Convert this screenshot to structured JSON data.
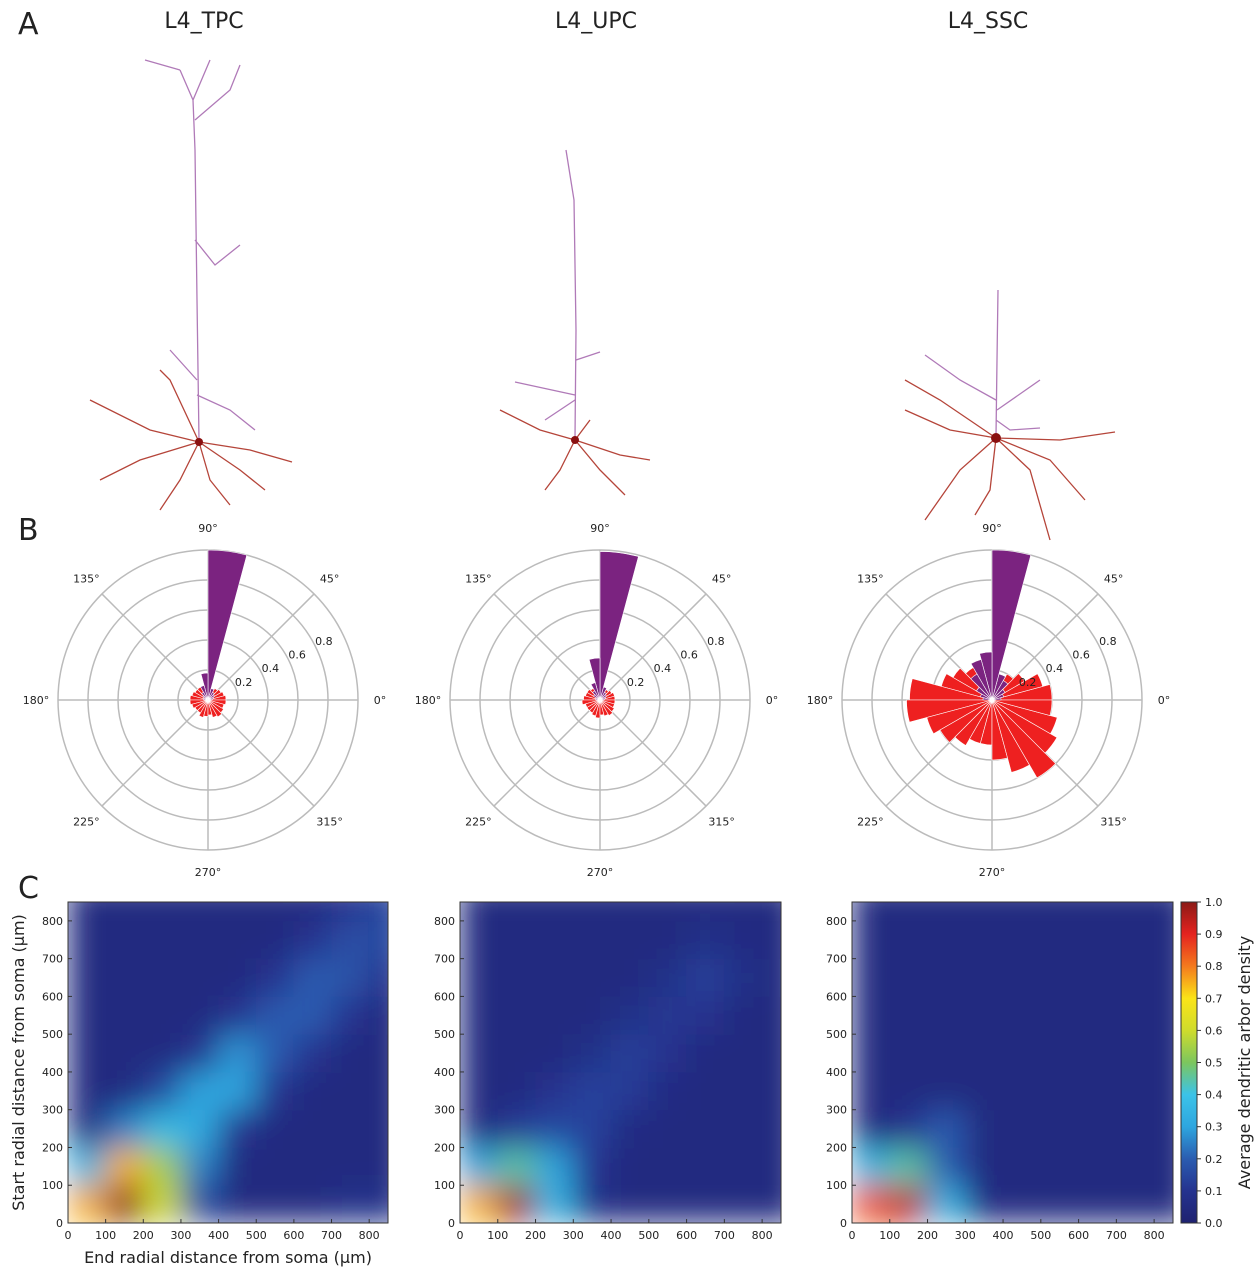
{
  "panel_labels": [
    "A",
    "B",
    "C"
  ],
  "neurons": [
    {
      "title": "L4_TPC"
    },
    {
      "title": "L4_UPC"
    },
    {
      "title": "L4_SSC"
    }
  ],
  "chart_data": [
    {
      "type": "polar-bar",
      "x": [
        0,
        15,
        30,
        45,
        60,
        75,
        90,
        105,
        120,
        135,
        150,
        165,
        180,
        195,
        210,
        225,
        240,
        255,
        270,
        285,
        300,
        315,
        330,
        345
      ],
      "series": [
        {
          "color": "#ee2020",
          "values": [
            0.12,
            0.11,
            0.1,
            0.09,
            0.08,
            0.06,
            0.07,
            0.08,
            0.1,
            0.1,
            0.11,
            0.12,
            0.12,
            0.11,
            0.1,
            0.1,
            0.12,
            0.11,
            0.1,
            0.12,
            0.13,
            0.12,
            0.11,
            0.12
          ]
        },
        {
          "color": "#7b2380",
          "values": [
            0.03,
            0.04,
            0.05,
            0.06,
            0.08,
            1.0,
            0.18,
            0.1,
            0.06,
            0.04,
            0.03,
            0.03,
            0,
            0,
            0,
            0,
            0,
            0,
            0,
            0,
            0,
            0,
            0,
            0
          ]
        }
      ],
      "ylim": [
        0,
        1
      ],
      "yticks": [
        0.2,
        0.4,
        0.6,
        0.8
      ],
      "angle_ticks": [
        {
          "value": 0,
          "label": "0°"
        },
        {
          "value": 45,
          "label": "45°"
        },
        {
          "value": 90,
          "label": "90°"
        },
        {
          "value": 135,
          "label": "135°"
        },
        {
          "value": 180,
          "label": "180°"
        },
        {
          "value": 225,
          "label": "225°"
        },
        {
          "value": 270,
          "label": "270°"
        },
        {
          "value": 315,
          "label": "315°"
        }
      ]
    },
    {
      "type": "polar-bar",
      "x": [
        0,
        15,
        30,
        45,
        60,
        75,
        90,
        105,
        120,
        135,
        150,
        165,
        180,
        195,
        210,
        225,
        240,
        255,
        270,
        285,
        300,
        315,
        330,
        345
      ],
      "series": [
        {
          "color": "#ee2020",
          "values": [
            0.1,
            0.1,
            0.09,
            0.08,
            0.07,
            0.06,
            0.07,
            0.08,
            0.09,
            0.1,
            0.1,
            0.11,
            0.12,
            0.1,
            0.1,
            0.1,
            0.11,
            0.12,
            0.1,
            0.11,
            0.12,
            0.11,
            0.1,
            0.1
          ]
        },
        {
          "color": "#7b2380",
          "values": [
            0.03,
            0.04,
            0.05,
            0.06,
            0.09,
            0.99,
            0.28,
            0.12,
            0.07,
            0.05,
            0.03,
            0.03,
            0,
            0,
            0,
            0,
            0,
            0,
            0,
            0,
            0,
            0,
            0,
            0
          ]
        }
      ],
      "ylim": [
        0,
        1
      ],
      "yticks": [
        0.2,
        0.4,
        0.6,
        0.8
      ],
      "angle_ticks": [
        {
          "value": 0,
          "label": "0°"
        },
        {
          "value": 45,
          "label": "45°"
        },
        {
          "value": 90,
          "label": "90°"
        },
        {
          "value": 135,
          "label": "135°"
        },
        {
          "value": 180,
          "label": "180°"
        },
        {
          "value": 225,
          "label": "225°"
        },
        {
          "value": 270,
          "label": "270°"
        },
        {
          "value": 315,
          "label": "315°"
        }
      ]
    },
    {
      "type": "polar-bar",
      "x": [
        0,
        15,
        30,
        45,
        60,
        75,
        90,
        105,
        120,
        135,
        150,
        165,
        180,
        195,
        210,
        225,
        240,
        255,
        270,
        285,
        300,
        315,
        330,
        345
      ],
      "series": [
        {
          "color": "#ee2020",
          "values": [
            0.4,
            0.35,
            0.25,
            0.2,
            0.15,
            0.1,
            0.15,
            0.2,
            0.25,
            0.3,
            0.35,
            0.55,
            0.57,
            0.45,
            0.4,
            0.35,
            0.3,
            0.3,
            0.4,
            0.5,
            0.6,
            0.5,
            0.45,
            0.4
          ]
        },
        {
          "color": "#7b2380",
          "values": [
            0.06,
            0.08,
            0.1,
            0.15,
            0.18,
            1.0,
            0.32,
            0.28,
            0.2,
            0.12,
            0.08,
            0.06,
            0,
            0,
            0,
            0,
            0,
            0,
            0,
            0,
            0,
            0,
            0,
            0
          ]
        }
      ],
      "ylim": [
        0,
        1
      ],
      "yticks": [
        0.2,
        0.4,
        0.6,
        0.8
      ],
      "angle_ticks": [
        {
          "value": 0,
          "label": "0°"
        },
        {
          "value": 45,
          "label": "45°"
        },
        {
          "value": 90,
          "label": "90°"
        },
        {
          "value": 135,
          "label": "135°"
        },
        {
          "value": 180,
          "label": "180°"
        },
        {
          "value": 225,
          "label": "225°"
        },
        {
          "value": 270,
          "label": "270°"
        },
        {
          "value": 315,
          "label": "315°"
        }
      ]
    },
    {
      "type": "heatmap",
      "x": [
        50,
        150,
        250,
        350,
        450,
        550,
        650,
        750,
        850
      ],
      "y": [
        50,
        150,
        250,
        350,
        450,
        550,
        650,
        750,
        850
      ],
      "z": [
        [
          0.75,
          1.0,
          0.6,
          0.15,
          0.05,
          0.05,
          0.05,
          0.08,
          0.08
        ],
        [
          0.35,
          0.75,
          0.55,
          0.25,
          0.05,
          0.05,
          0.05,
          0.05,
          0.05
        ],
        [
          0.05,
          0.25,
          0.38,
          0.32,
          0.1,
          0.05,
          0.05,
          0.05,
          0.05
        ],
        [
          0.05,
          0.05,
          0.15,
          0.3,
          0.3,
          0.1,
          0.05,
          0.05,
          0.05
        ],
        [
          0.05,
          0.05,
          0.05,
          0.1,
          0.28,
          0.2,
          0.1,
          0.05,
          0.05
        ],
        [
          0.05,
          0.05,
          0.05,
          0.05,
          0.1,
          0.2,
          0.2,
          0.1,
          0.05
        ],
        [
          0.05,
          0.05,
          0.05,
          0.05,
          0.05,
          0.1,
          0.2,
          0.18,
          0.1
        ],
        [
          0.05,
          0.05,
          0.05,
          0.05,
          0.05,
          0.05,
          0.1,
          0.17,
          0.15
        ],
        [
          0.05,
          0.05,
          0.05,
          0.05,
          0.05,
          0.05,
          0.05,
          0.1,
          0.15
        ]
      ],
      "xlim": [
        0,
        850
      ],
      "ylim": [
        0,
        850
      ],
      "xticks": [
        0,
        100,
        200,
        300,
        400,
        500,
        600,
        700,
        800
      ],
      "yticks": [
        0,
        100,
        200,
        300,
        400,
        500,
        600,
        700,
        800
      ],
      "xlabel": "End radial distance from soma (µm)",
      "ylabel": "Start radial distance from soma (µm)"
    },
    {
      "type": "heatmap",
      "x": [
        50,
        150,
        250,
        350,
        450,
        550,
        650,
        750,
        850
      ],
      "y": [
        50,
        150,
        250,
        350,
        450,
        550,
        650,
        750,
        850
      ],
      "z": [
        [
          0.75,
          0.98,
          0.35,
          0.08,
          0.05,
          0.05,
          0.05,
          0.05,
          0.05
        ],
        [
          0.3,
          0.45,
          0.3,
          0.1,
          0.05,
          0.05,
          0.05,
          0.05,
          0.05
        ],
        [
          0.05,
          0.12,
          0.15,
          0.14,
          0.06,
          0.05,
          0.05,
          0.05,
          0.05
        ],
        [
          0.05,
          0.05,
          0.1,
          0.14,
          0.12,
          0.06,
          0.05,
          0.05,
          0.05
        ],
        [
          0.05,
          0.05,
          0.05,
          0.08,
          0.13,
          0.1,
          0.05,
          0.05,
          0.05
        ],
        [
          0.05,
          0.05,
          0.05,
          0.05,
          0.08,
          0.11,
          0.1,
          0.05,
          0.05
        ],
        [
          0.05,
          0.05,
          0.05,
          0.05,
          0.05,
          0.08,
          0.13,
          0.08,
          0.05
        ],
        [
          0.05,
          0.05,
          0.05,
          0.05,
          0.05,
          0.05,
          0.08,
          0.06,
          0.05
        ],
        [
          0.05,
          0.05,
          0.05,
          0.05,
          0.05,
          0.05,
          0.05,
          0.05,
          0.05
        ]
      ],
      "xlim": [
        0,
        850
      ],
      "ylim": [
        0,
        850
      ],
      "xticks": [
        0,
        100,
        200,
        300,
        400,
        500,
        600,
        700,
        800
      ],
      "yticks": [
        0,
        100,
        200,
        300,
        400,
        500,
        600,
        700,
        800
      ]
    },
    {
      "type": "heatmap",
      "x": [
        50,
        150,
        250,
        350,
        450,
        550,
        650,
        750,
        850
      ],
      "y": [
        50,
        150,
        250,
        350,
        450,
        550,
        650,
        750,
        850
      ],
      "z": [
        [
          0.85,
          0.95,
          0.35,
          0.06,
          0.05,
          0.05,
          0.05,
          0.05,
          0.05
        ],
        [
          0.35,
          0.45,
          0.2,
          0.05,
          0.05,
          0.05,
          0.05,
          0.05,
          0.05
        ],
        [
          0.05,
          0.1,
          0.2,
          0.05,
          0.05,
          0.05,
          0.05,
          0.05,
          0.05
        ],
        [
          0.05,
          0.05,
          0.05,
          0.05,
          0.05,
          0.05,
          0.05,
          0.05,
          0.05
        ],
        [
          0.05,
          0.05,
          0.05,
          0.05,
          0.05,
          0.05,
          0.05,
          0.05,
          0.05
        ],
        [
          0.05,
          0.05,
          0.05,
          0.05,
          0.05,
          0.05,
          0.05,
          0.05,
          0.05
        ],
        [
          0.05,
          0.05,
          0.05,
          0.05,
          0.05,
          0.05,
          0.05,
          0.05,
          0.05
        ],
        [
          0.05,
          0.05,
          0.05,
          0.05,
          0.05,
          0.05,
          0.05,
          0.05,
          0.05
        ],
        [
          0.05,
          0.05,
          0.05,
          0.05,
          0.05,
          0.05,
          0.05,
          0.05,
          0.05
        ]
      ],
      "xlim": [
        0,
        850
      ],
      "ylim": [
        0,
        850
      ],
      "xticks": [
        0,
        100,
        200,
        300,
        400,
        500,
        600,
        700,
        800
      ],
      "yticks": [
        0,
        100,
        200,
        300,
        400,
        500,
        600,
        700,
        800
      ],
      "colorbar": {
        "label": "Average dendritic arbor density",
        "lim": [
          0,
          1
        ],
        "ticks": [
          {
            "value": 0,
            "label": "0.0"
          },
          {
            "value": 0.1,
            "label": "0.1"
          },
          {
            "value": 0.2,
            "label": "0.2"
          },
          {
            "value": 0.3,
            "label": "0.3"
          },
          {
            "value": 0.4,
            "label": "0.4"
          },
          {
            "value": 0.5,
            "label": "0.5"
          },
          {
            "value": 0.6,
            "label": "0.6"
          },
          {
            "value": 0.7,
            "label": "0.7"
          },
          {
            "value": 0.8,
            "label": "0.8"
          },
          {
            "value": 0.9,
            "label": "0.9"
          },
          {
            "value": 1,
            "label": "1.0"
          }
        ]
      },
      "colormap": [
        "#1f2270",
        "#25338f",
        "#2a5cb0",
        "#2ea6df",
        "#3cc3e8",
        "#7cc65e",
        "#cfdc2c",
        "#fbe418",
        "#f47a1e",
        "#e5231f",
        "#8b1a16"
      ]
    }
  ]
}
